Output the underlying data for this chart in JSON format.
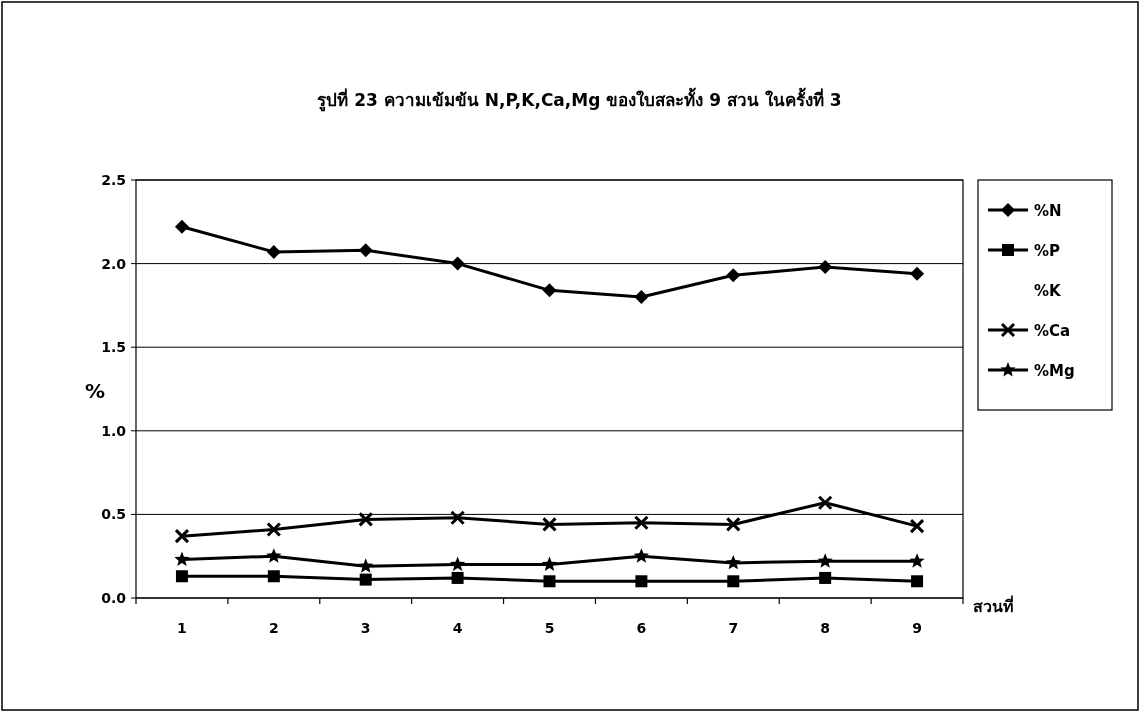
{
  "chart_data": {
    "type": "line",
    "title": "รูปที่ 23 ความเข้มข้น N,P,K,Ca,Mg ของใบสละทั้ง 9 สวน ในครั้งที่ 3",
    "xlabel": "สวนที่",
    "ylabel": "%",
    "categories": [
      "1",
      "2",
      "3",
      "4",
      "5",
      "6",
      "7",
      "8",
      "9"
    ],
    "series": [
      {
        "name": "%N",
        "color": "#000000",
        "marker": "diamond",
        "values": [
          2.22,
          2.07,
          2.08,
          2.0,
          1.84,
          1.8,
          1.93,
          1.98,
          1.94
        ]
      },
      {
        "name": "%P",
        "color": "#000000",
        "marker": "square",
        "values": [
          0.13,
          0.13,
          0.11,
          0.12,
          0.1,
          0.1,
          0.1,
          0.12,
          0.1
        ]
      },
      {
        "name": "%K",
        "marker": "none",
        "values": [
          null,
          null,
          null,
          null,
          null,
          null,
          null,
          null,
          null
        ]
      },
      {
        "name": "%Ca",
        "color": "#000000",
        "marker": "cross",
        "values": [
          0.37,
          0.41,
          0.47,
          0.48,
          0.44,
          0.45,
          0.44,
          0.57,
          0.43
        ]
      },
      {
        "name": "%Mg",
        "color": "#000000",
        "marker": "star",
        "values": [
          0.23,
          0.25,
          0.19,
          0.2,
          0.2,
          0.25,
          0.21,
          0.22,
          0.22
        ]
      }
    ],
    "ylim": [
      0,
      2.5
    ],
    "yticks": [
      {
        "value": 0,
        "label": "0.0"
      },
      {
        "value": 0.5,
        "label": "0.5"
      },
      {
        "value": 1,
        "label": "1.0"
      },
      {
        "value": 1.5,
        "label": "1.5"
      },
      {
        "value": 2,
        "label": "2.0"
      },
      {
        "value": 2.5,
        "label": "2.5"
      }
    ],
    "grid": "y",
    "legend": "right",
    "line_style": "solid"
  }
}
